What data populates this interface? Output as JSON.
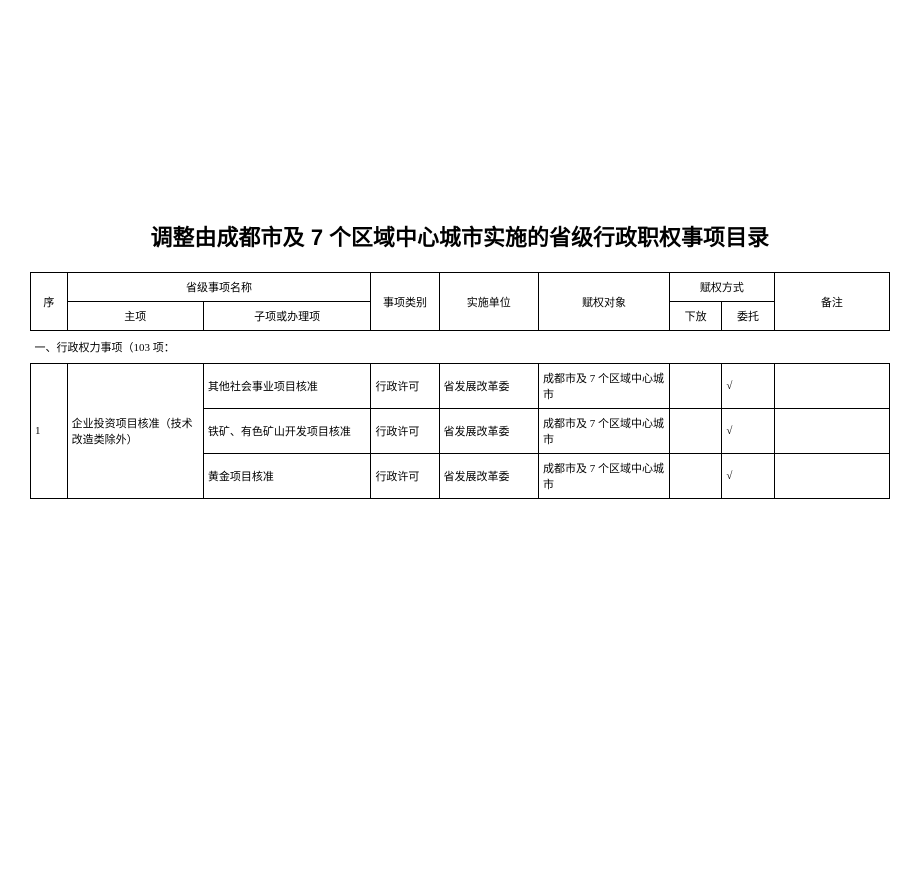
{
  "title": "调整由成都市及 7 个区域中心城市实施的省级行政职权事项目录",
  "headers": {
    "seq": "序",
    "name_group": "省级事项名称",
    "main_item": "主项",
    "sub_item": "子项或办理项",
    "category": "事项类别",
    "impl_unit": "实施单位",
    "auth_target": "赋权对象",
    "auth_method": "赋权方式",
    "xiafang": "下放",
    "weituo": "委托",
    "note": "备注"
  },
  "section": "一、行政权力事项（103 项：",
  "rows": [
    {
      "seq": "1",
      "main": "企业投资项目核准（技术改造类除外）",
      "subs": [
        {
          "sub": "其他社会事业项目核准",
          "category": "行政许可",
          "unit": "省发展改革委",
          "target": "成都市及 7 个区域中心城市",
          "xiafang": "",
          "weituo": "√",
          "note": ""
        },
        {
          "sub": "铁矿、有色矿山开发项目核准",
          "category": "行政许可",
          "unit": "省发展改革委",
          "target": "成都市及 7 个区域中心城市",
          "xiafang": "",
          "weituo": "√",
          "note": ""
        },
        {
          "sub": "黄金项目核准",
          "category": "行政许可",
          "unit": "省发展改革委",
          "target": "成都市及 7 个区域中心城市",
          "xiafang": "",
          "weituo": "√",
          "note": ""
        }
      ]
    }
  ]
}
